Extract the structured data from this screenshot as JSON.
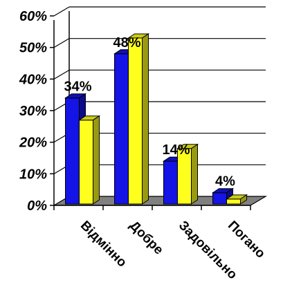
{
  "chart_data": {
    "type": "bar",
    "categories": [
      "Відмінно",
      "Добре",
      "Задовільно",
      "Погано"
    ],
    "series": [
      {
        "values": [
          34,
          48,
          14,
          4
        ],
        "color": "#1414e6"
      },
      {
        "values": [
          27,
          53,
          18,
          2
        ],
        "color": "#ffff1e"
      }
    ],
    "data_labels": [
      "34%",
      "48%",
      "14%",
      "4%"
    ],
    "yticks": [
      "0%",
      "10%",
      "20%",
      "30%",
      "40%",
      "50%",
      "60%"
    ],
    "ylim": [
      0,
      60
    ],
    "grid": true,
    "legend": false,
    "style": "3d-clustered-column",
    "floor_color": "#808080"
  }
}
